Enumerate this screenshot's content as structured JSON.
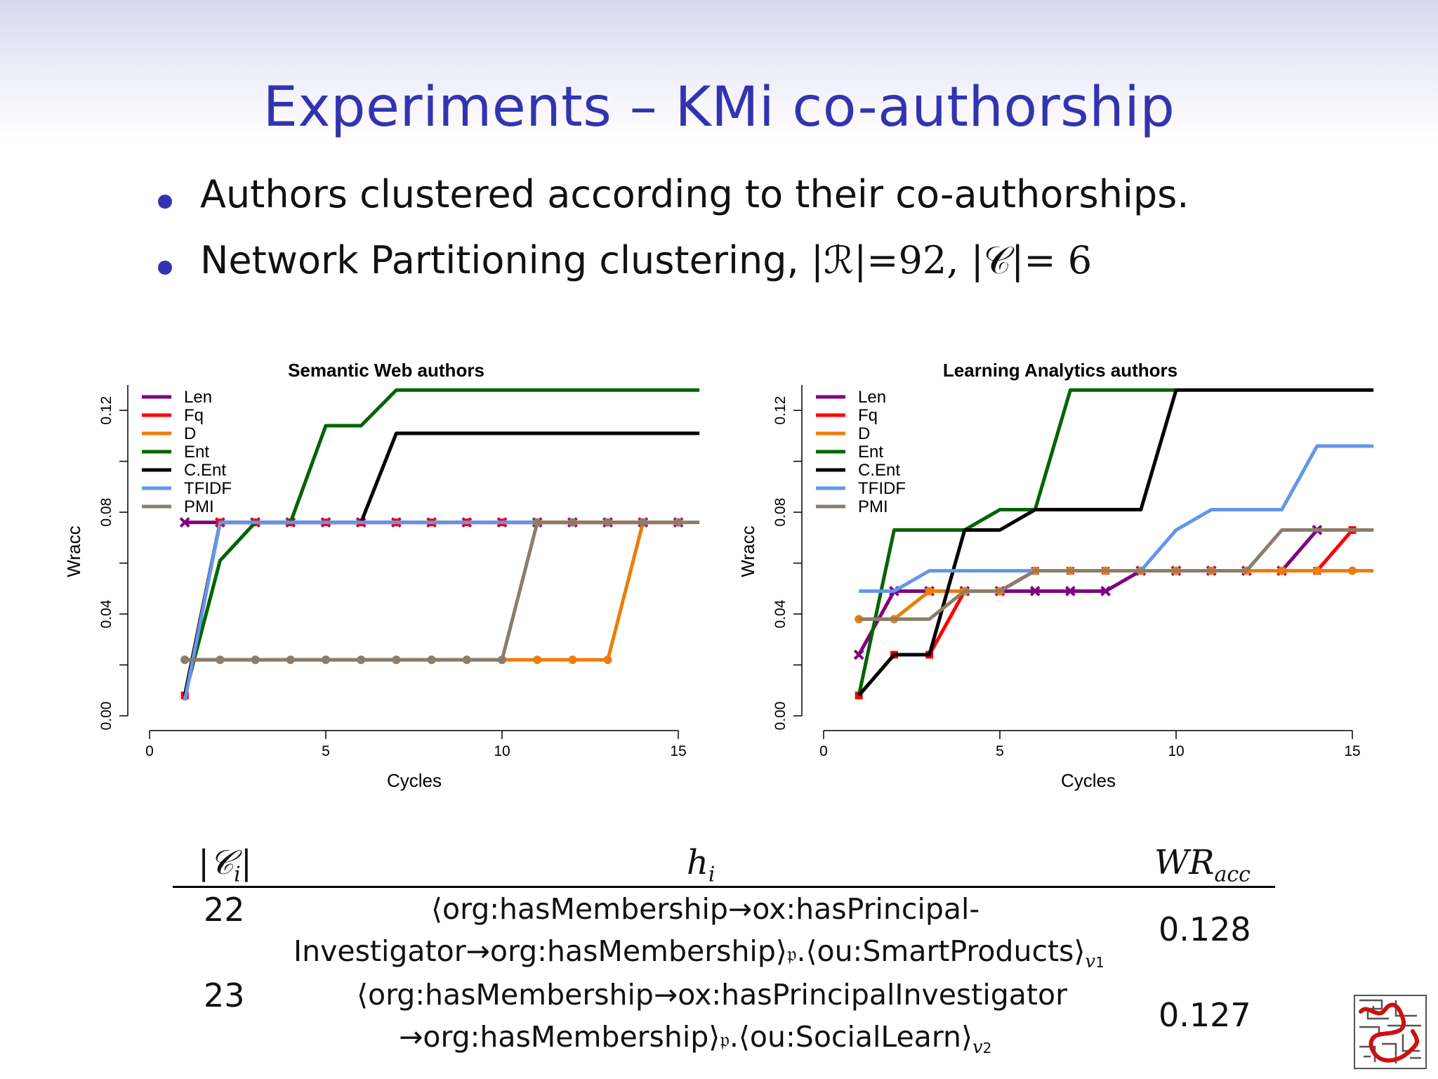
{
  "slide": {
    "title": "Experiments – KMi co-authorship",
    "bullets": [
      "Authors clustered according to their co-authorships.",
      "Network Partitioning clustering, "
    ],
    "bullet2_math": {
      "r_part": "|ℛ|=92, ",
      "c_part": "|𝒞|= 6"
    }
  },
  "chart_data": [
    {
      "type": "line",
      "title": "Semantic Web authors",
      "xlabel": "Cycles",
      "ylabel": "Wracc",
      "xlim": [
        0,
        15
      ],
      "ylim": [
        0,
        0.13
      ],
      "xticks": [
        "0",
        "5",
        "10",
        "15"
      ],
      "yticks": [
        "0.00",
        "0.04",
        "0.08",
        "0.12"
      ],
      "legend_position": "top-left",
      "series": [
        {
          "name": "Len",
          "color": "#800080",
          "marker": "x",
          "x": [
            1,
            2,
            3,
            4,
            5,
            6,
            7,
            8,
            9,
            10,
            11,
            12,
            13,
            14,
            15
          ],
          "y": [
            0.076,
            0.076,
            0.076,
            0.076,
            0.076,
            0.076,
            0.076,
            0.076,
            0.076,
            0.076,
            0.076,
            0.076,
            0.076,
            0.076,
            0.076
          ]
        },
        {
          "name": "Fq",
          "color": "#ff0000",
          "marker": "square",
          "x": [
            1,
            2,
            3,
            4,
            5,
            6,
            7,
            8,
            9,
            10,
            11,
            12,
            13,
            14,
            15
          ],
          "y": [
            0.008,
            0.076,
            0.076,
            0.076,
            0.076,
            0.076,
            0.076,
            0.076,
            0.076,
            0.076,
            0.076,
            0.076,
            0.076,
            0.076,
            0.076
          ]
        },
        {
          "name": "D",
          "color": "#ed7d0b",
          "marker": "circle",
          "x": [
            1,
            2,
            3,
            4,
            5,
            6,
            7,
            8,
            9,
            10,
            11,
            12,
            13,
            14,
            15
          ],
          "y": [
            0.022,
            0.022,
            0.022,
            0.022,
            0.022,
            0.022,
            0.022,
            0.022,
            0.022,
            0.022,
            0.022,
            0.022,
            0.022,
            0.076,
            0.076
          ]
        },
        {
          "name": "Ent",
          "color": "#006400",
          "marker": "none",
          "x": [
            1,
            2,
            3,
            4,
            5,
            6,
            7,
            8,
            9,
            10,
            11,
            12,
            13,
            14,
            15,
            15.6
          ],
          "y": [
            0.008,
            0.061,
            0.076,
            0.076,
            0.114,
            0.114,
            0.128,
            0.128,
            0.128,
            0.128,
            0.128,
            0.128,
            0.128,
            0.128,
            0.128,
            0.128
          ]
        },
        {
          "name": "C.Ent",
          "color": "#000000",
          "marker": "none",
          "x": [
            1,
            2,
            3,
            4,
            5,
            6,
            7,
            8,
            9,
            10,
            11,
            12,
            13,
            14,
            15,
            15.6
          ],
          "y": [
            0.008,
            0.076,
            0.076,
            0.076,
            0.076,
            0.076,
            0.111,
            0.111,
            0.111,
            0.111,
            0.111,
            0.111,
            0.111,
            0.111,
            0.111,
            0.111
          ]
        },
        {
          "name": "TFIDF",
          "color": "#6495ed",
          "marker": "none",
          "x": [
            1,
            2,
            3,
            4,
            5,
            6,
            7,
            8,
            9,
            10,
            11
          ],
          "y": [
            0.006,
            0.076,
            0.076,
            0.076,
            0.076,
            0.076,
            0.076,
            0.076,
            0.076,
            0.076,
            0.076
          ]
        },
        {
          "name": "PMI",
          "color": "#8b7d6b",
          "marker": "circle",
          "x": [
            1,
            2,
            3,
            4,
            5,
            6,
            7,
            8,
            9,
            10,
            11,
            12,
            13,
            14,
            15,
            15.6
          ],
          "y": [
            0.022,
            0.022,
            0.022,
            0.022,
            0.022,
            0.022,
            0.022,
            0.022,
            0.022,
            0.022,
            0.076,
            0.076,
            0.076,
            0.076,
            0.076,
            0.076
          ]
        }
      ]
    },
    {
      "type": "line",
      "title": "Learning Analytics authors",
      "xlabel": "Cycles",
      "ylabel": "Wracc",
      "xlim": [
        0,
        15
      ],
      "ylim": [
        0,
        0.13
      ],
      "xticks": [
        "0",
        "5",
        "10",
        "15"
      ],
      "yticks": [
        "0.00",
        "0.04",
        "0.08",
        "0.12"
      ],
      "legend_position": "top-left",
      "series": [
        {
          "name": "Len",
          "color": "#800080",
          "marker": "x",
          "x": [
            1,
            2,
            3,
            4,
            5,
            6,
            7,
            8,
            9,
            10,
            11,
            12,
            13,
            14
          ],
          "y": [
            0.024,
            0.049,
            0.049,
            0.049,
            0.049,
            0.049,
            0.049,
            0.049,
            0.057,
            0.057,
            0.057,
            0.057,
            0.057,
            0.073
          ]
        },
        {
          "name": "Fq",
          "color": "#ff0000",
          "marker": "square",
          "x": [
            1,
            2,
            3,
            4,
            5,
            6,
            7,
            8,
            9,
            10,
            11,
            12,
            13,
            14,
            15,
            15.6
          ],
          "y": [
            0.008,
            0.024,
            0.024,
            0.049,
            0.049,
            0.057,
            0.057,
            0.057,
            0.057,
            0.057,
            0.057,
            0.057,
            0.057,
            0.057,
            0.073,
            0.073
          ]
        },
        {
          "name": "D",
          "color": "#ed7d0b",
          "marker": "circle",
          "x": [
            1,
            2,
            3,
            4,
            5,
            6,
            7,
            8,
            9,
            10,
            11,
            12,
            13,
            14,
            15,
            15.6
          ],
          "y": [
            0.038,
            0.038,
            0.049,
            0.049,
            0.049,
            0.057,
            0.057,
            0.057,
            0.057,
            0.057,
            0.057,
            0.057,
            0.057,
            0.057,
            0.057,
            0.057
          ]
        },
        {
          "name": "Ent",
          "color": "#006400",
          "marker": "none",
          "x": [
            1,
            2,
            3,
            4,
            5,
            6,
            7,
            8,
            9,
            10
          ],
          "y": [
            0.008,
            0.073,
            0.073,
            0.073,
            0.081,
            0.081,
            0.128,
            0.128,
            0.128,
            0.128
          ]
        },
        {
          "name": "C.Ent",
          "color": "#000000",
          "marker": "none",
          "x": [
            1,
            2,
            3,
            4,
            5,
            6,
            7,
            8,
            9,
            10,
            11,
            12,
            13,
            14,
            15,
            15.6
          ],
          "y": [
            0.008,
            0.024,
            0.024,
            0.073,
            0.073,
            0.081,
            0.081,
            0.081,
            0.081,
            0.128,
            0.128,
            0.128,
            0.128,
            0.128,
            0.128,
            0.128
          ]
        },
        {
          "name": "TFIDF",
          "color": "#6495ed",
          "marker": "none",
          "x": [
            1,
            2,
            3,
            4,
            5,
            6,
            7,
            8,
            9,
            10,
            11,
            12,
            13,
            14,
            15,
            15.6
          ],
          "y": [
            0.049,
            0.049,
            0.057,
            0.057,
            0.057,
            0.057,
            0.057,
            0.057,
            0.057,
            0.073,
            0.081,
            0.081,
            0.081,
            0.106,
            0.106,
            0.106
          ]
        },
        {
          "name": "PMI",
          "color": "#8b7d6b",
          "marker": "none",
          "x": [
            1,
            2,
            3,
            4,
            5,
            6,
            7,
            8,
            9,
            10,
            11,
            12,
            13,
            14,
            15,
            15.6
          ],
          "y": [
            0.038,
            0.038,
            0.038,
            0.049,
            0.049,
            0.057,
            0.057,
            0.057,
            0.057,
            0.057,
            0.057,
            0.057,
            0.073,
            0.073,
            0.073,
            0.073
          ]
        }
      ]
    }
  ],
  "table": {
    "headers": {
      "ci": "|𝒞",
      "ci_sub": "i",
      "ci_close": "|",
      "hi": "h",
      "hi_sub": "i",
      "wr": "WR",
      "wr_sub": "acc"
    },
    "rows": [
      {
        "size": "22",
        "line1": "⟨org:hasMembership→ox:hasPrincipal-",
        "line2": "Investigator→org:hasMembership⟩",
        "line2b": "𝔭",
        "line2c": ".⟨ou:SmartProducts⟩",
        "sub": "v",
        "sub2": "1",
        "value": "0.128"
      },
      {
        "size": "23",
        "line1": "⟨org:hasMembership→ox:hasPrincipalInvestigator",
        "line2": "→org:hasMembership⟩",
        "line2b": "𝔭",
        "line2c": ".⟨ou:SocialLearn⟩",
        "sub": "v",
        "sub2": "2",
        "value": "0.127"
      }
    ]
  },
  "logo": {
    "icon": "maze-logo-icon",
    "colors": [
      "#cc1111",
      "#555555"
    ]
  }
}
